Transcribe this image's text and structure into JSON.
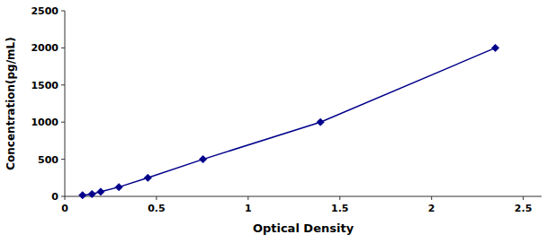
{
  "chart_data": {
    "type": "line",
    "x": [
      0.097,
      0.148,
      0.196,
      0.295,
      0.453,
      0.754,
      1.394,
      2.348
    ],
    "values": [
      15.6,
      31.25,
      62.5,
      125,
      250,
      500,
      1000,
      2000
    ],
    "color": "#00008B",
    "marker": "diamond",
    "xlabel": "Optical Density",
    "ylabel": "Concentration(pg/mL)",
    "xlim": [
      0,
      2.6
    ],
    "ylim": [
      0,
      2500
    ],
    "xticks": [
      0,
      0.5,
      1,
      1.5,
      2,
      2.5
    ],
    "yticks": [
      0,
      500,
      1000,
      1500,
      2000,
      2500
    ],
    "grid": false
  }
}
